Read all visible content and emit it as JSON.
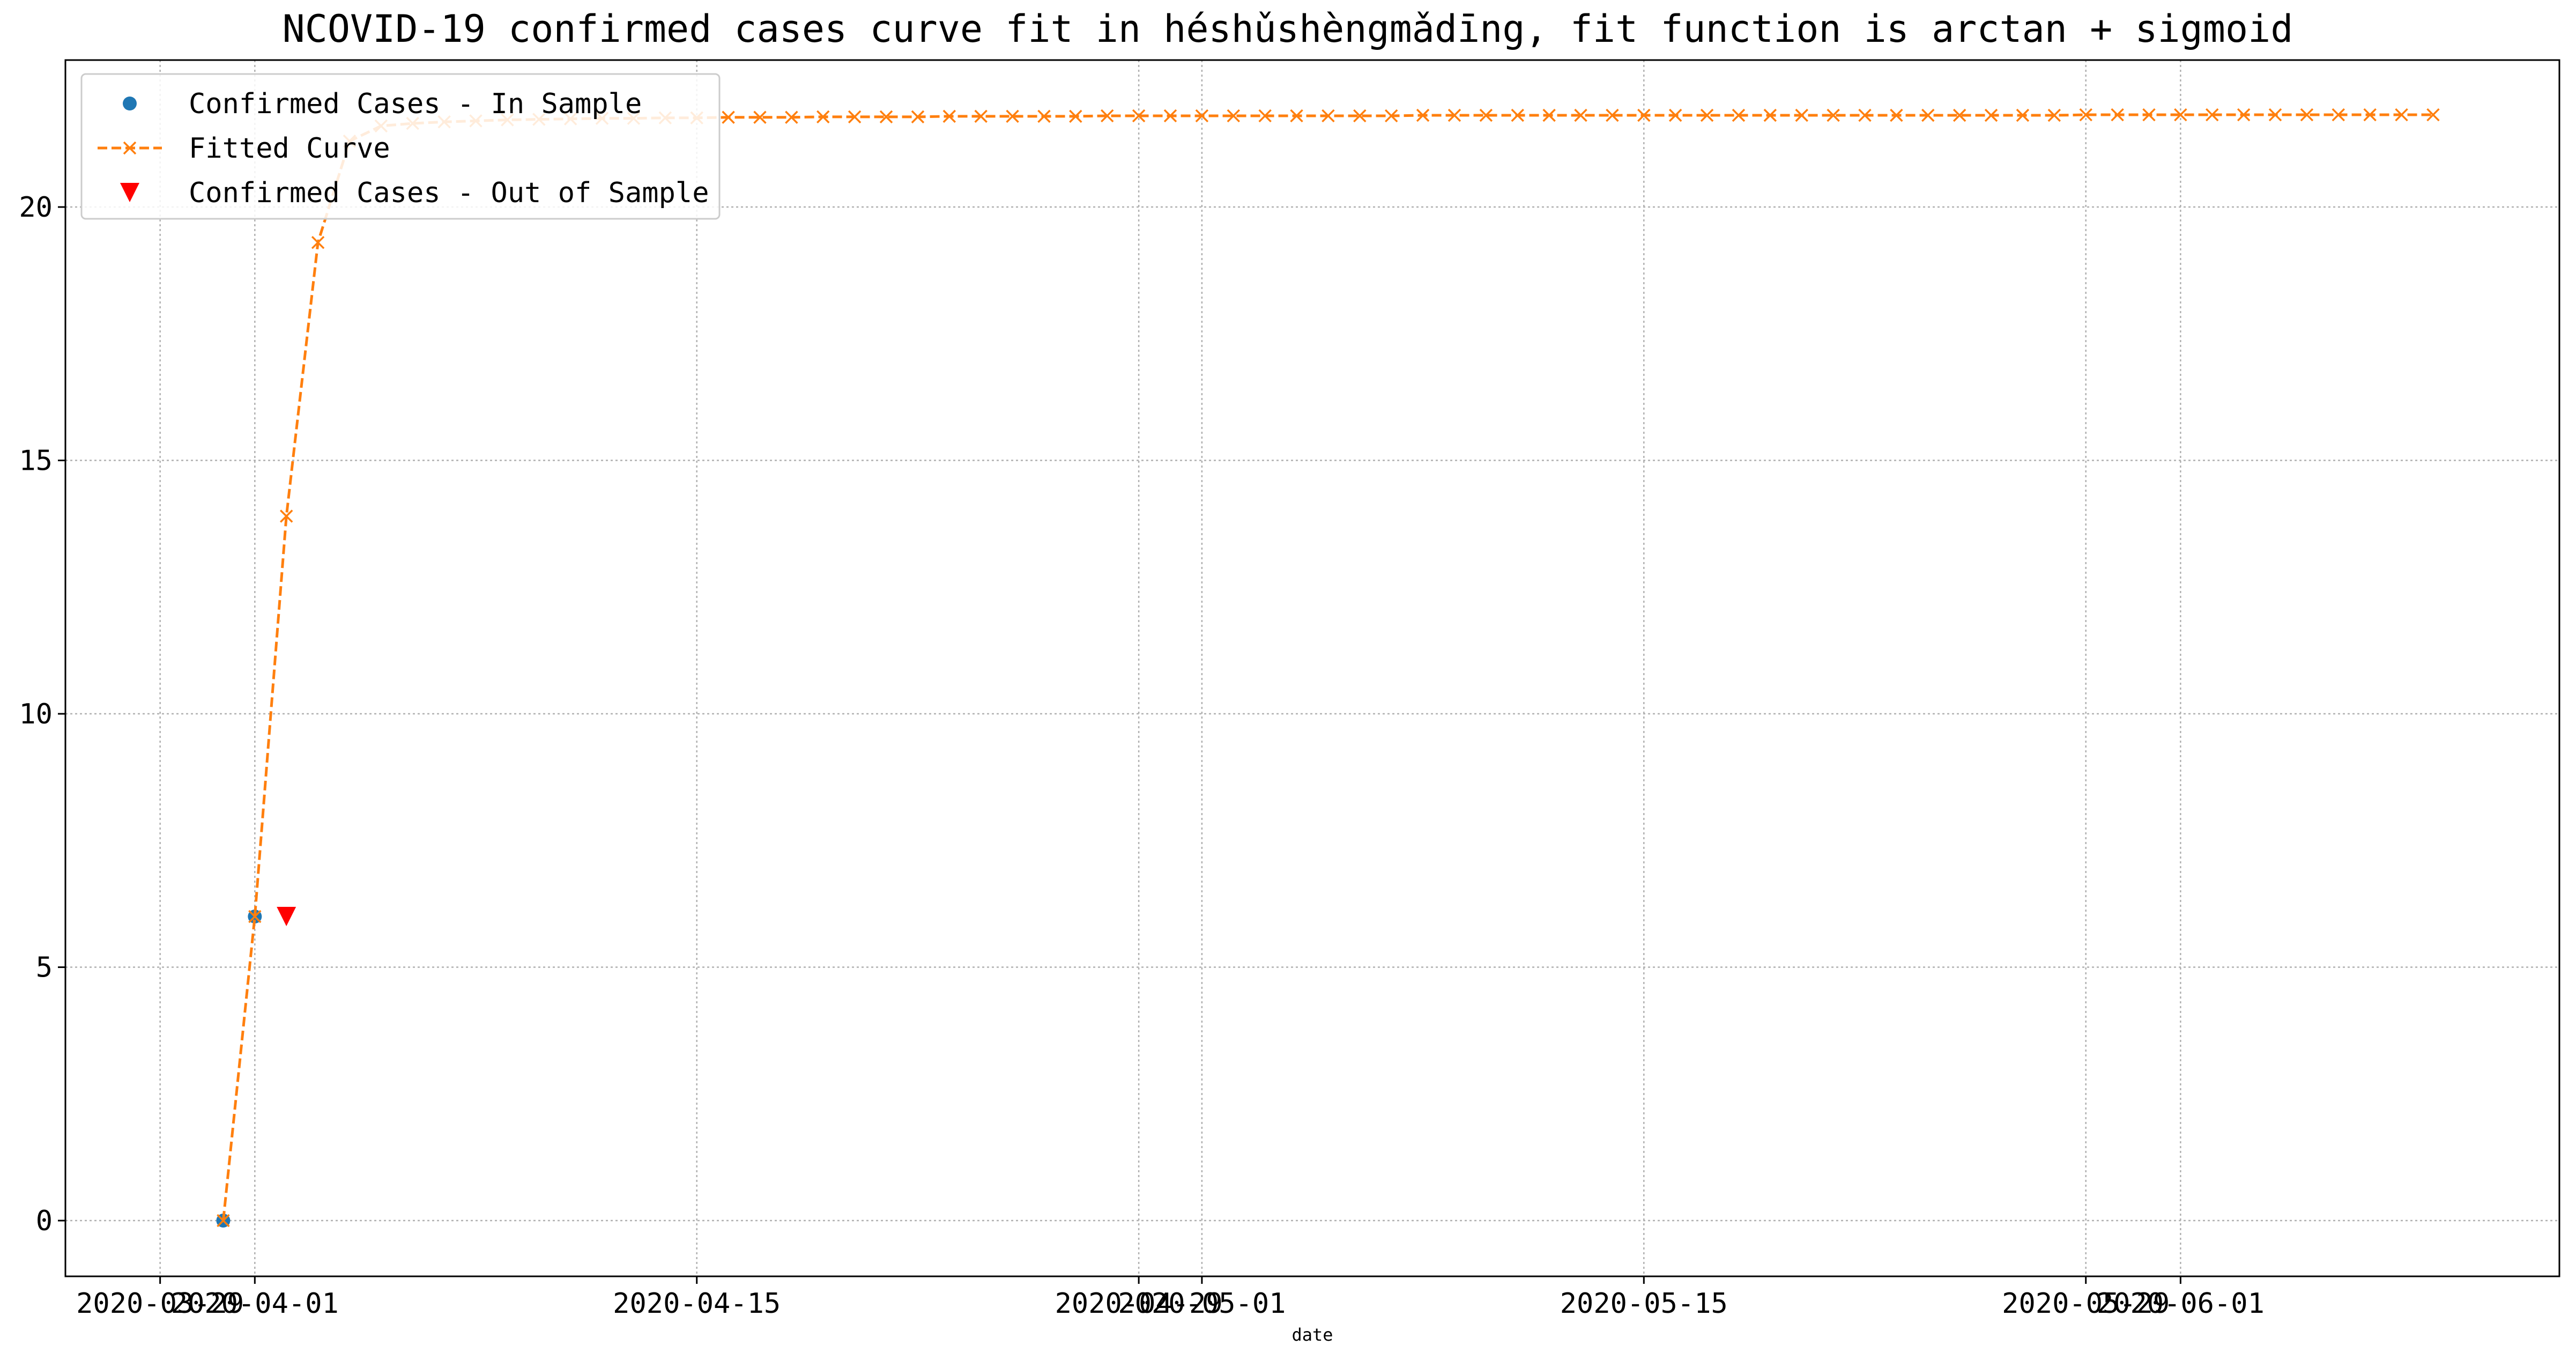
{
  "chart_data": {
    "type": "line",
    "title": "NCOVID-19 confirmed cases curve fit in héshǔshèngmǎdīng, fit function is arctan + sigmoid",
    "xlabel": "date",
    "ylabel": "",
    "x_axis": {
      "type": "date",
      "range": [
        "2020-03-26",
        "2020-06-13"
      ],
      "tick_labels": [
        "2020-03-29",
        "2020-04-01",
        "2020-04-15",
        "2020-04-29",
        "2020-05-01",
        "2020-05-15",
        "2020-05-29",
        "2020-06-01"
      ],
      "tick_dates": [
        "2020-03-29",
        "2020-04-01",
        "2020-04-15",
        "2020-04-29",
        "2020-05-01",
        "2020-05-15",
        "2020-05-29",
        "2020-06-01"
      ]
    },
    "y_axis": {
      "range": [
        -1.1,
        22.9
      ],
      "ticks": [
        0,
        5,
        10,
        15,
        20
      ]
    },
    "grid": true,
    "legend_position": "top-left",
    "series": [
      {
        "name": "Confirmed Cases - In Sample",
        "style": "markers",
        "marker": "circle",
        "color": "#1f77b4",
        "points": [
          {
            "x": "2020-03-31",
            "y": 0
          },
          {
            "x": "2020-04-01",
            "y": 6
          }
        ]
      },
      {
        "name": "Fitted Curve",
        "style": "dashed-line-x-markers",
        "marker": "x",
        "color": "#ff7f0e",
        "start_date": "2020-03-31",
        "values": [
          0,
          6,
          13.9,
          19.3,
          21.3,
          21.6,
          21.65,
          21.68,
          21.7,
          21.72,
          21.73,
          21.74,
          21.75,
          21.75,
          21.76,
          21.76,
          21.77,
          21.77,
          21.77,
          21.78,
          21.78,
          21.78,
          21.78,
          21.79,
          21.79,
          21.79,
          21.79,
          21.79,
          21.8,
          21.8,
          21.8,
          21.8,
          21.8,
          21.8,
          21.8,
          21.8,
          21.8,
          21.8,
          21.81,
          21.81,
          21.81,
          21.81,
          21.81,
          21.81,
          21.81,
          21.81,
          21.81,
          21.81,
          21.81,
          21.81,
          21.81,
          21.81,
          21.81,
          21.81,
          21.81,
          21.81,
          21.81,
          21.81,
          21.81,
          21.82,
          21.82,
          21.82,
          21.82,
          21.82,
          21.82,
          21.82,
          21.82,
          21.82,
          21.82,
          21.82,
          21.82
        ]
      },
      {
        "name": "Confirmed Cases - Out of Sample",
        "style": "markers",
        "marker": "triangle-down",
        "color": "#ff0000",
        "points": [
          {
            "x": "2020-04-02",
            "y": 6
          }
        ]
      }
    ]
  }
}
